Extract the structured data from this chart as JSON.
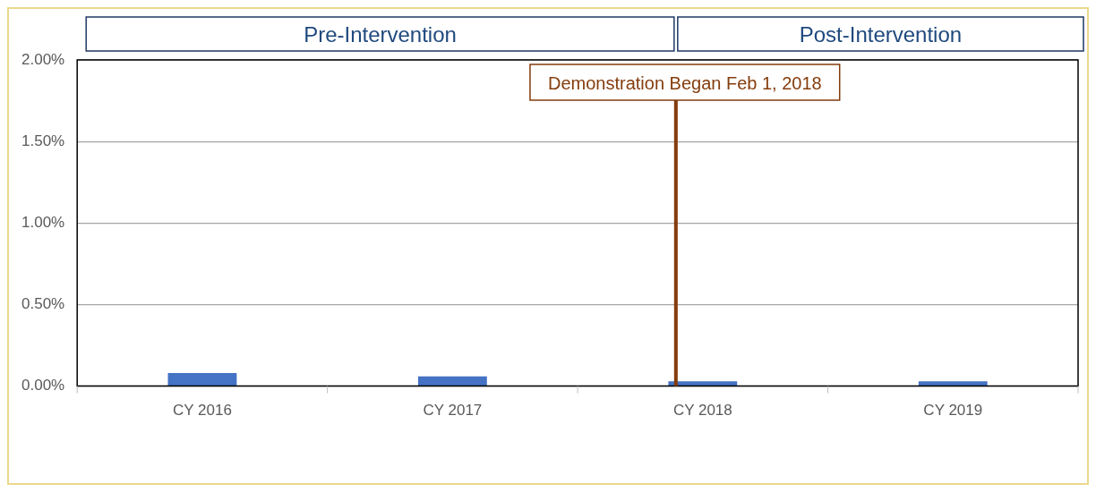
{
  "chart_data": {
    "type": "bar",
    "categories": [
      "CY 2016",
      "CY 2017",
      "CY 2018",
      "CY 2019"
    ],
    "values": [
      0.08,
      0.06,
      0.03,
      0.03
    ],
    "color": "#4472c4",
    "ylim": [
      0,
      2
    ],
    "yticks": [
      {
        "value": 0,
        "label": "0.00%"
      },
      {
        "value": 0.5,
        "label": "0.50%"
      },
      {
        "value": 1,
        "label": "1.00%"
      },
      {
        "value": 1.5,
        "label": "1.50%"
      },
      {
        "value": 2,
        "label": "2.00%"
      }
    ],
    "grid": "y",
    "legend": false,
    "ref_lines": [
      {
        "axis": "x",
        "value": "CY 2018",
        "label": "Demonstration Began Feb 1, 2018",
        "color": "#843c0c"
      }
    ],
    "annotations": [
      "Pre-Intervention",
      "Post-Intervention"
    ]
  }
}
